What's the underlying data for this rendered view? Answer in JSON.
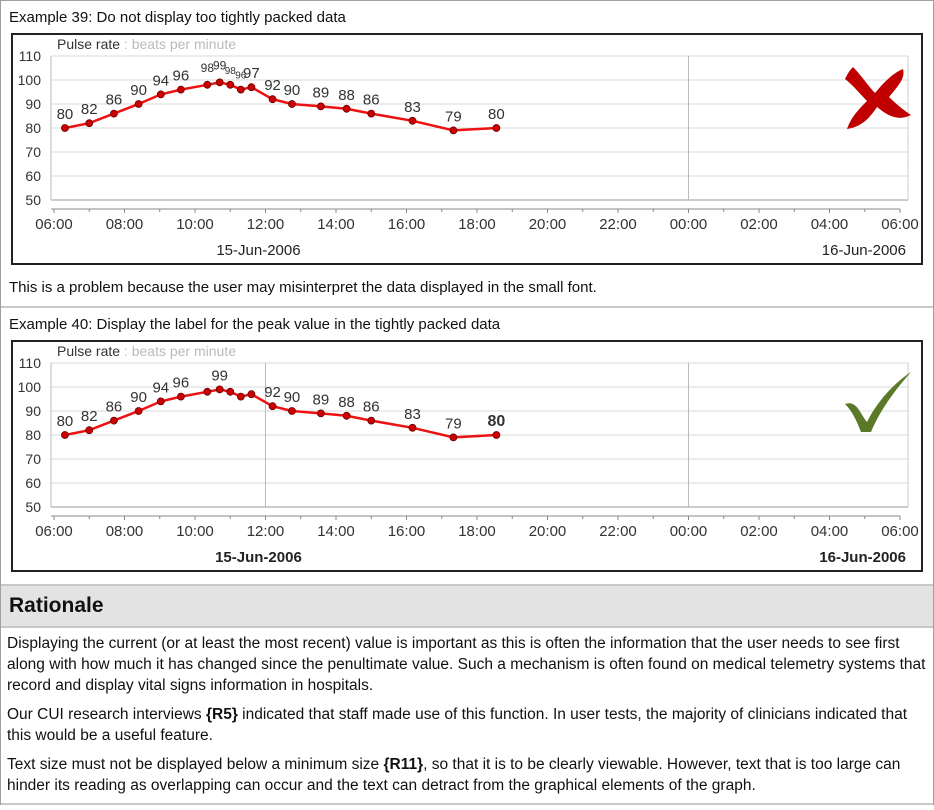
{
  "example1": {
    "title": "Example 39: Do not display too tightly packed data",
    "caption": "This is a problem because the user may misinterpret the data displayed in the small font.",
    "verdict_icon": "red-cross-icon",
    "verdict_color": "#c00000"
  },
  "example2": {
    "title": "Example 40: Display the label for the peak value in the tightly packed data",
    "verdict_icon": "green-check-icon",
    "verdict_color": "#5a7a2a"
  },
  "rationale": {
    "heading": "Rationale",
    "p1": "Displaying the current (or at least the most recent) value is important as this is often the information that the user needs to see first along with how much it has changed since the penultimate value. Such a mechanism is often found on medical telemetry systems that record and display vital signs information in hospitals.",
    "p2_a": "Our CUI research interviews ",
    "p2_ref": "{R5}",
    "p2_b": " indicated that staff made use of this function. In user tests, the majority of clinicians indicated that this would be a useful feature.",
    "p3_a": "Text size must not be displayed below a minimum size ",
    "p3_ref": "{R11}",
    "p3_b": ", so that it is to be clearly viewable. However, text that is too large can hinder its reading as overlapping can occur and the text can detract from the graphical elements of the graph."
  },
  "chart_data": [
    {
      "type": "line",
      "title": "Pulse rate",
      "subtitle": ": beats per minute",
      "ylim": [
        50,
        110
      ],
      "yticks": [
        "50",
        "60",
        "70",
        "80",
        "90",
        "100",
        "110"
      ],
      "xlim_hours": [
        0,
        24
      ],
      "xticks": [
        "06:00",
        "08:00",
        "10:00",
        "12:00",
        "14:00",
        "16:00",
        "18:00",
        "20:00",
        "22:00",
        "00:00",
        "02:00",
        "04:00",
        "06:00"
      ],
      "date_labels": [
        "15-Jun-2006",
        "16-Jun-2006"
      ],
      "date_bold": false,
      "vertical_markers": [
        "00:00"
      ],
      "x_hours_from_0600": [
        0.31,
        1.0,
        1.7,
        2.4,
        3.03,
        3.6,
        4.35,
        4.7,
        5.0,
        5.3,
        5.6,
        6.2,
        6.75,
        7.57,
        8.3,
        9.0,
        10.17,
        11.33,
        12.55
      ],
      "values": [
        80,
        82,
        86,
        90,
        94,
        96,
        98,
        99,
        98,
        96,
        97,
        92,
        90,
        89,
        88,
        86,
        83,
        79,
        80
      ],
      "labels": [
        "80",
        "82",
        "86",
        "90",
        "94",
        "96",
        "98",
        "99",
        "98",
        "96",
        "97",
        "92",
        "90",
        "89",
        "88",
        "86",
        "83",
        "79",
        "80"
      ],
      "label_style": [
        "n",
        "n",
        "n",
        "n",
        "n",
        "n",
        "s",
        "s",
        "xs",
        "xs",
        "n",
        "n",
        "n",
        "n",
        "n",
        "n",
        "n",
        "n",
        "n"
      ],
      "line_color": "#ee1111",
      "marker_color": "#cc0000"
    },
    {
      "type": "line",
      "title": "Pulse rate",
      "subtitle": ": beats per minute",
      "ylim": [
        50,
        110
      ],
      "yticks": [
        "50",
        "60",
        "70",
        "80",
        "90",
        "100",
        "110"
      ],
      "xlim_hours": [
        0,
        24
      ],
      "xticks": [
        "06:00",
        "08:00",
        "10:00",
        "12:00",
        "14:00",
        "16:00",
        "18:00",
        "20:00",
        "22:00",
        "00:00",
        "02:00",
        "04:00",
        "06:00"
      ],
      "date_labels": [
        "15-Jun-2006",
        "16-Jun-2006"
      ],
      "date_bold": true,
      "vertical_markers": [
        "12:00",
        "00:00"
      ],
      "x_hours_from_0600": [
        0.31,
        1.0,
        1.7,
        2.4,
        3.03,
        3.6,
        4.35,
        4.7,
        5.0,
        5.3,
        5.6,
        6.2,
        6.75,
        7.57,
        8.3,
        9.0,
        10.17,
        11.33,
        12.55
      ],
      "values": [
        80,
        82,
        86,
        90,
        94,
        96,
        98,
        99,
        98,
        96,
        97,
        92,
        90,
        89,
        88,
        86,
        83,
        79,
        80
      ],
      "labels": [
        "80",
        "82",
        "86",
        "90",
        "94",
        "96",
        "",
        "99",
        "",
        "",
        "",
        "92",
        "90",
        "89",
        "88",
        "86",
        "83",
        "79",
        "80"
      ],
      "label_style": [
        "n",
        "n",
        "n",
        "n",
        "n",
        "n",
        "n",
        "n",
        "n",
        "n",
        "n",
        "n",
        "n",
        "n",
        "n",
        "n",
        "n",
        "n",
        "b"
      ],
      "line_color": "#ee1111",
      "marker_color": "#cc0000"
    }
  ]
}
